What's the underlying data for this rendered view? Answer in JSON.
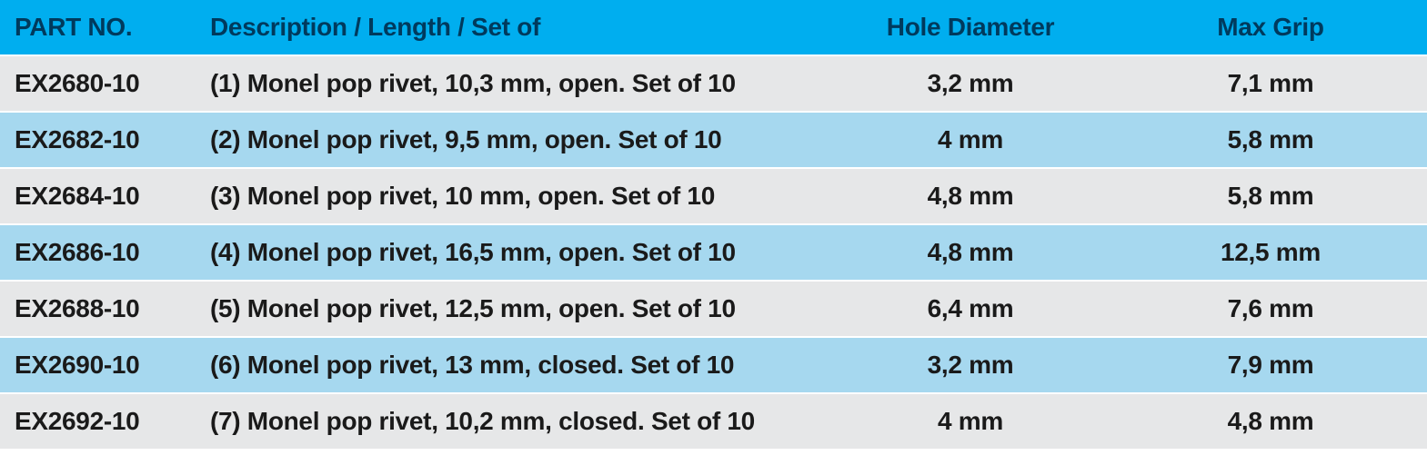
{
  "table": {
    "header_bg": "#00aeef",
    "header_fg": "#003a5d",
    "row_odd_bg": "#e6e7e8",
    "row_even_bg": "#a6d8ef",
    "row_fg": "#1a1a1a",
    "columns": [
      {
        "key": "part_no",
        "label": "PART NO.",
        "class": "col-partno"
      },
      {
        "key": "description",
        "label": "Description / Length / Set of",
        "class": "col-desc"
      },
      {
        "key": "hole_diameter",
        "label": "Hole Diameter",
        "class": "col-hole"
      },
      {
        "key": "max_grip",
        "label": "Max Grip",
        "class": "col-grip"
      }
    ],
    "rows": [
      {
        "part_no": "EX2680-10",
        "description": "(1) Monel pop rivet, 10,3 mm, open. Set of 10",
        "hole_diameter": "3,2 mm",
        "max_grip": "7,1 mm"
      },
      {
        "part_no": "EX2682-10",
        "description": "(2) Monel pop rivet, 9,5 mm, open. Set of 10",
        "hole_diameter": "4 mm",
        "max_grip": "5,8 mm"
      },
      {
        "part_no": "EX2684-10",
        "description": "(3) Monel pop rivet, 10 mm, open. Set of 10",
        "hole_diameter": "4,8 mm",
        "max_grip": "5,8 mm"
      },
      {
        "part_no": "EX2686-10",
        "description": "(4) Monel pop rivet, 16,5 mm, open. Set of 10",
        "hole_diameter": "4,8 mm",
        "max_grip": "12,5 mm"
      },
      {
        "part_no": "EX2688-10",
        "description": "(5) Monel pop rivet, 12,5 mm, open. Set of 10",
        "hole_diameter": "6,4 mm",
        "max_grip": "7,6 mm"
      },
      {
        "part_no": "EX2690-10",
        "description": "(6) Monel pop rivet, 13 mm, closed. Set of 10",
        "hole_diameter": "3,2 mm",
        "max_grip": "7,9 mm"
      },
      {
        "part_no": "EX2692-10",
        "description": "(7) Monel pop rivet, 10,2 mm, closed. Set of 10",
        "hole_diameter": "4 mm",
        "max_grip": "4,8 mm"
      }
    ]
  }
}
